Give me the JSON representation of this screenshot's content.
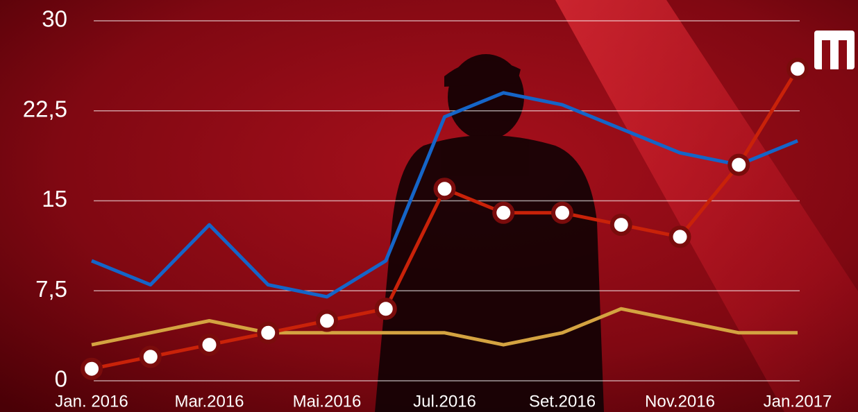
{
  "chart_data": {
    "type": "line",
    "categories": [
      "Jan. 2016",
      null,
      "Mar.2016",
      null,
      "Mai.2016",
      null,
      "Jul.2016",
      null,
      "Set.2016",
      null,
      "Nov.2016",
      null,
      "Jan.2017"
    ],
    "series": [
      {
        "color": "#d4a341",
        "values": [
          3,
          4,
          5,
          4,
          4,
          4,
          4,
          3,
          4,
          6,
          5,
          4,
          4
        ],
        "markers": false
      },
      {
        "color": "#1565c8",
        "values": [
          10,
          8,
          13,
          8,
          7,
          10,
          22,
          24,
          23,
          21,
          19,
          18,
          20
        ],
        "markers": false
      },
      {
        "color": "#c92209",
        "values": [
          1,
          2,
          3,
          4,
          5,
          6,
          16,
          14,
          14,
          13,
          12,
          18,
          26
        ],
        "markers": true
      }
    ],
    "ylim": [
      0,
      30
    ],
    "yticks": [
      0,
      {
        "value": 7.5,
        "label": "7,5"
      },
      15,
      {
        "value": 22.5,
        "label": "22,5"
      },
      30
    ],
    "grid": true
  }
}
